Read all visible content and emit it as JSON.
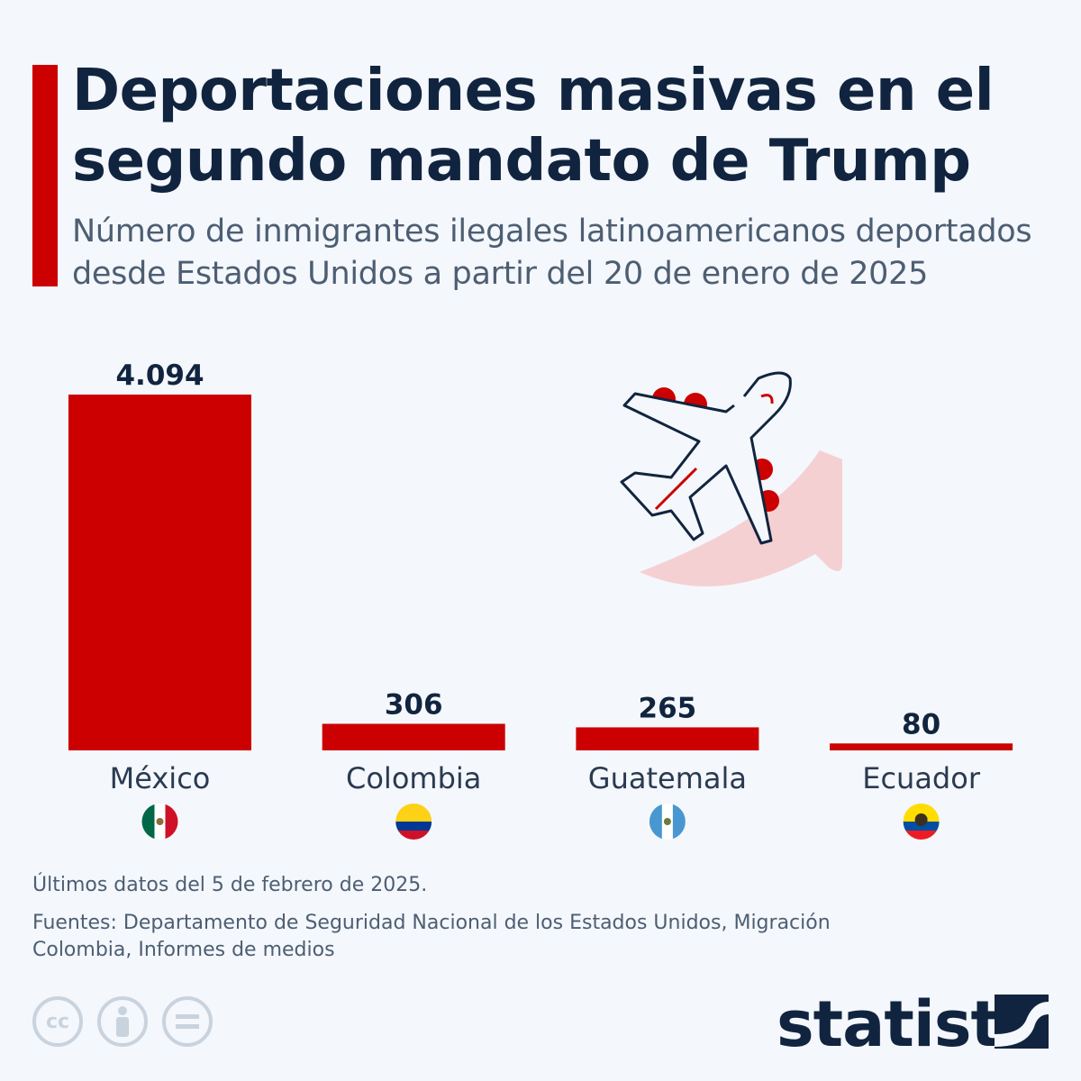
{
  "title": "Deportaciones masivas en el segundo mandato de Trump",
  "subtitle": "Número de inmigrantes ilegales latinoamericanos deportados desde Estados Unidos a partir del 20 de enero de 2025",
  "chart_data": {
    "type": "bar",
    "categories": [
      "México",
      "Colombia",
      "Guatemala",
      "Ecuador"
    ],
    "values": [
      4094,
      306,
      265,
      80
    ],
    "value_labels": [
      "4.094",
      "306",
      "265",
      "80"
    ],
    "flags": [
      "mexico-flag-icon",
      "colombia-flag-icon",
      "guatemala-flag-icon",
      "ecuador-flag-icon"
    ],
    "bar_color": "#cc0000",
    "grid": false,
    "ylim": [
      0,
      4094
    ]
  },
  "footer": {
    "note": "Últimos datos del 5 de febrero de 2025.",
    "sources": "Fuentes: Departamento de Seguridad Nacional de los Estados Unidos, Migración Colombia, Informes de medios",
    "license_icons": [
      "cc-icon",
      "attribution-icon",
      "no-derivatives-icon"
    ],
    "cc_text": "cc",
    "brand": "statista"
  },
  "colors": {
    "accent": "#cc0000",
    "title": "#11243f",
    "background": "#f4f7fb",
    "arrow": "#f5d0d2"
  }
}
